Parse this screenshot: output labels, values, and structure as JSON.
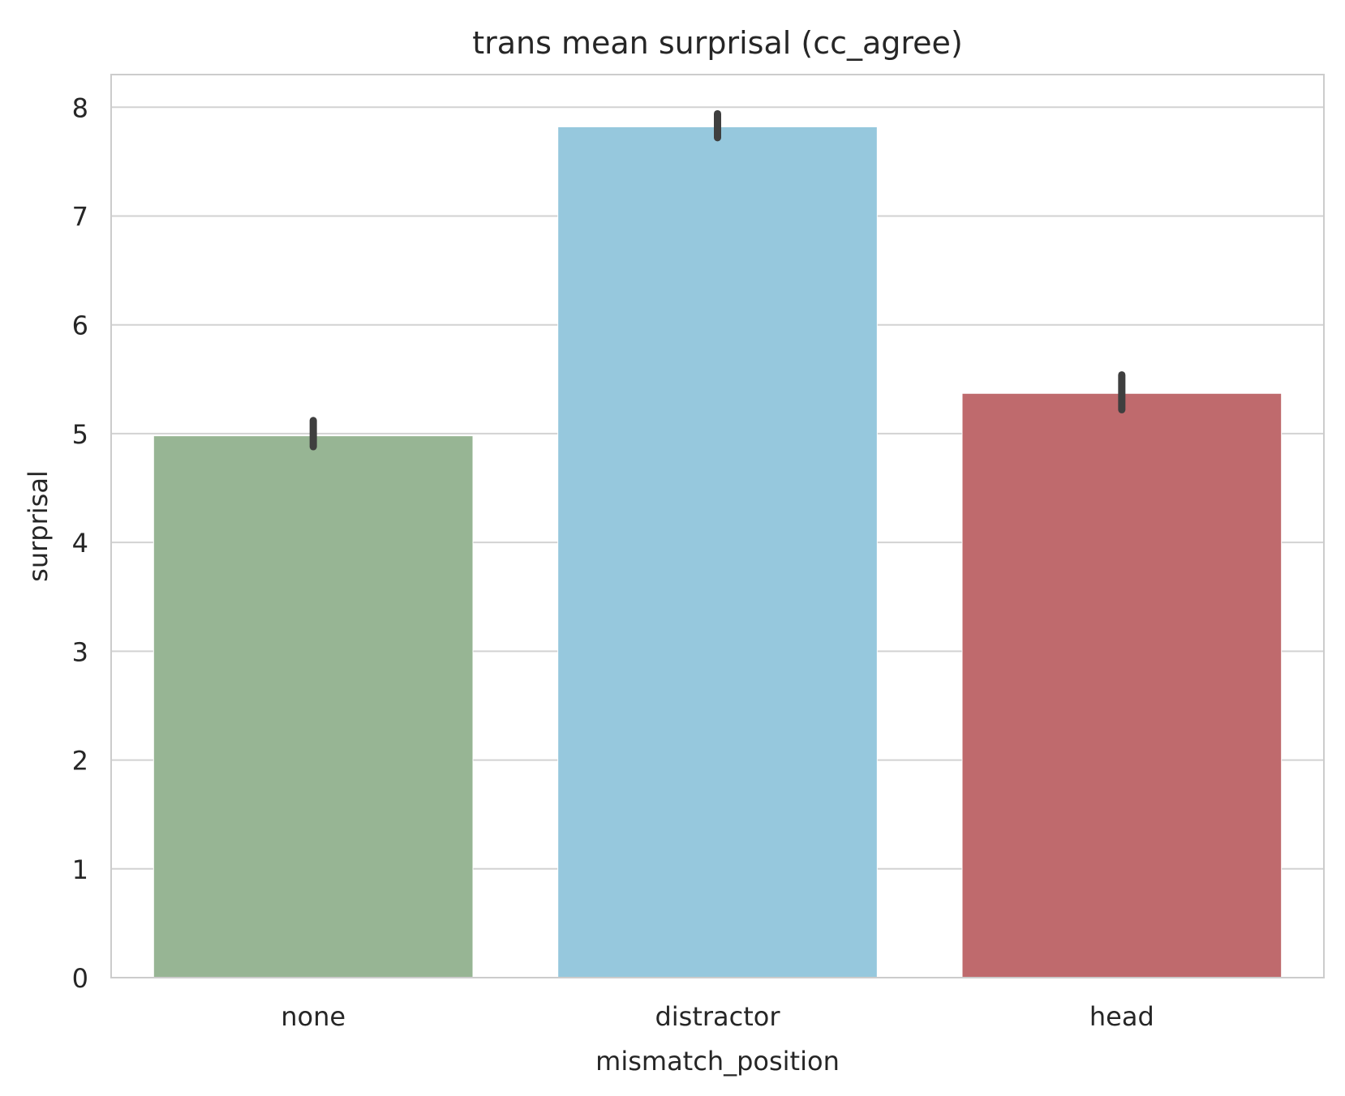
{
  "chart_data": {
    "type": "bar",
    "title": "trans mean surprisal (cc_agree)",
    "xlabel": "mismatch_position",
    "ylabel": "surprisal",
    "categories": [
      "none",
      "distractor",
      "head"
    ],
    "values": [
      4.98,
      7.82,
      5.37
    ],
    "error_bars": [
      {
        "low": 4.88,
        "high": 5.12
      },
      {
        "low": 7.72,
        "high": 7.94
      },
      {
        "low": 5.22,
        "high": 5.54
      }
    ],
    "colors": [
      "#97b594",
      "#96c8dd",
      "#bf6a6d"
    ],
    "error_bar_color": "#3f3f3f",
    "ylim": [
      0,
      8.3
    ],
    "yticks": [
      0,
      1,
      2,
      3,
      4,
      5,
      6,
      7,
      8
    ],
    "grid": true,
    "grid_color": "#d2d2d2",
    "frame_color": "#cccccc",
    "legend": "none"
  }
}
